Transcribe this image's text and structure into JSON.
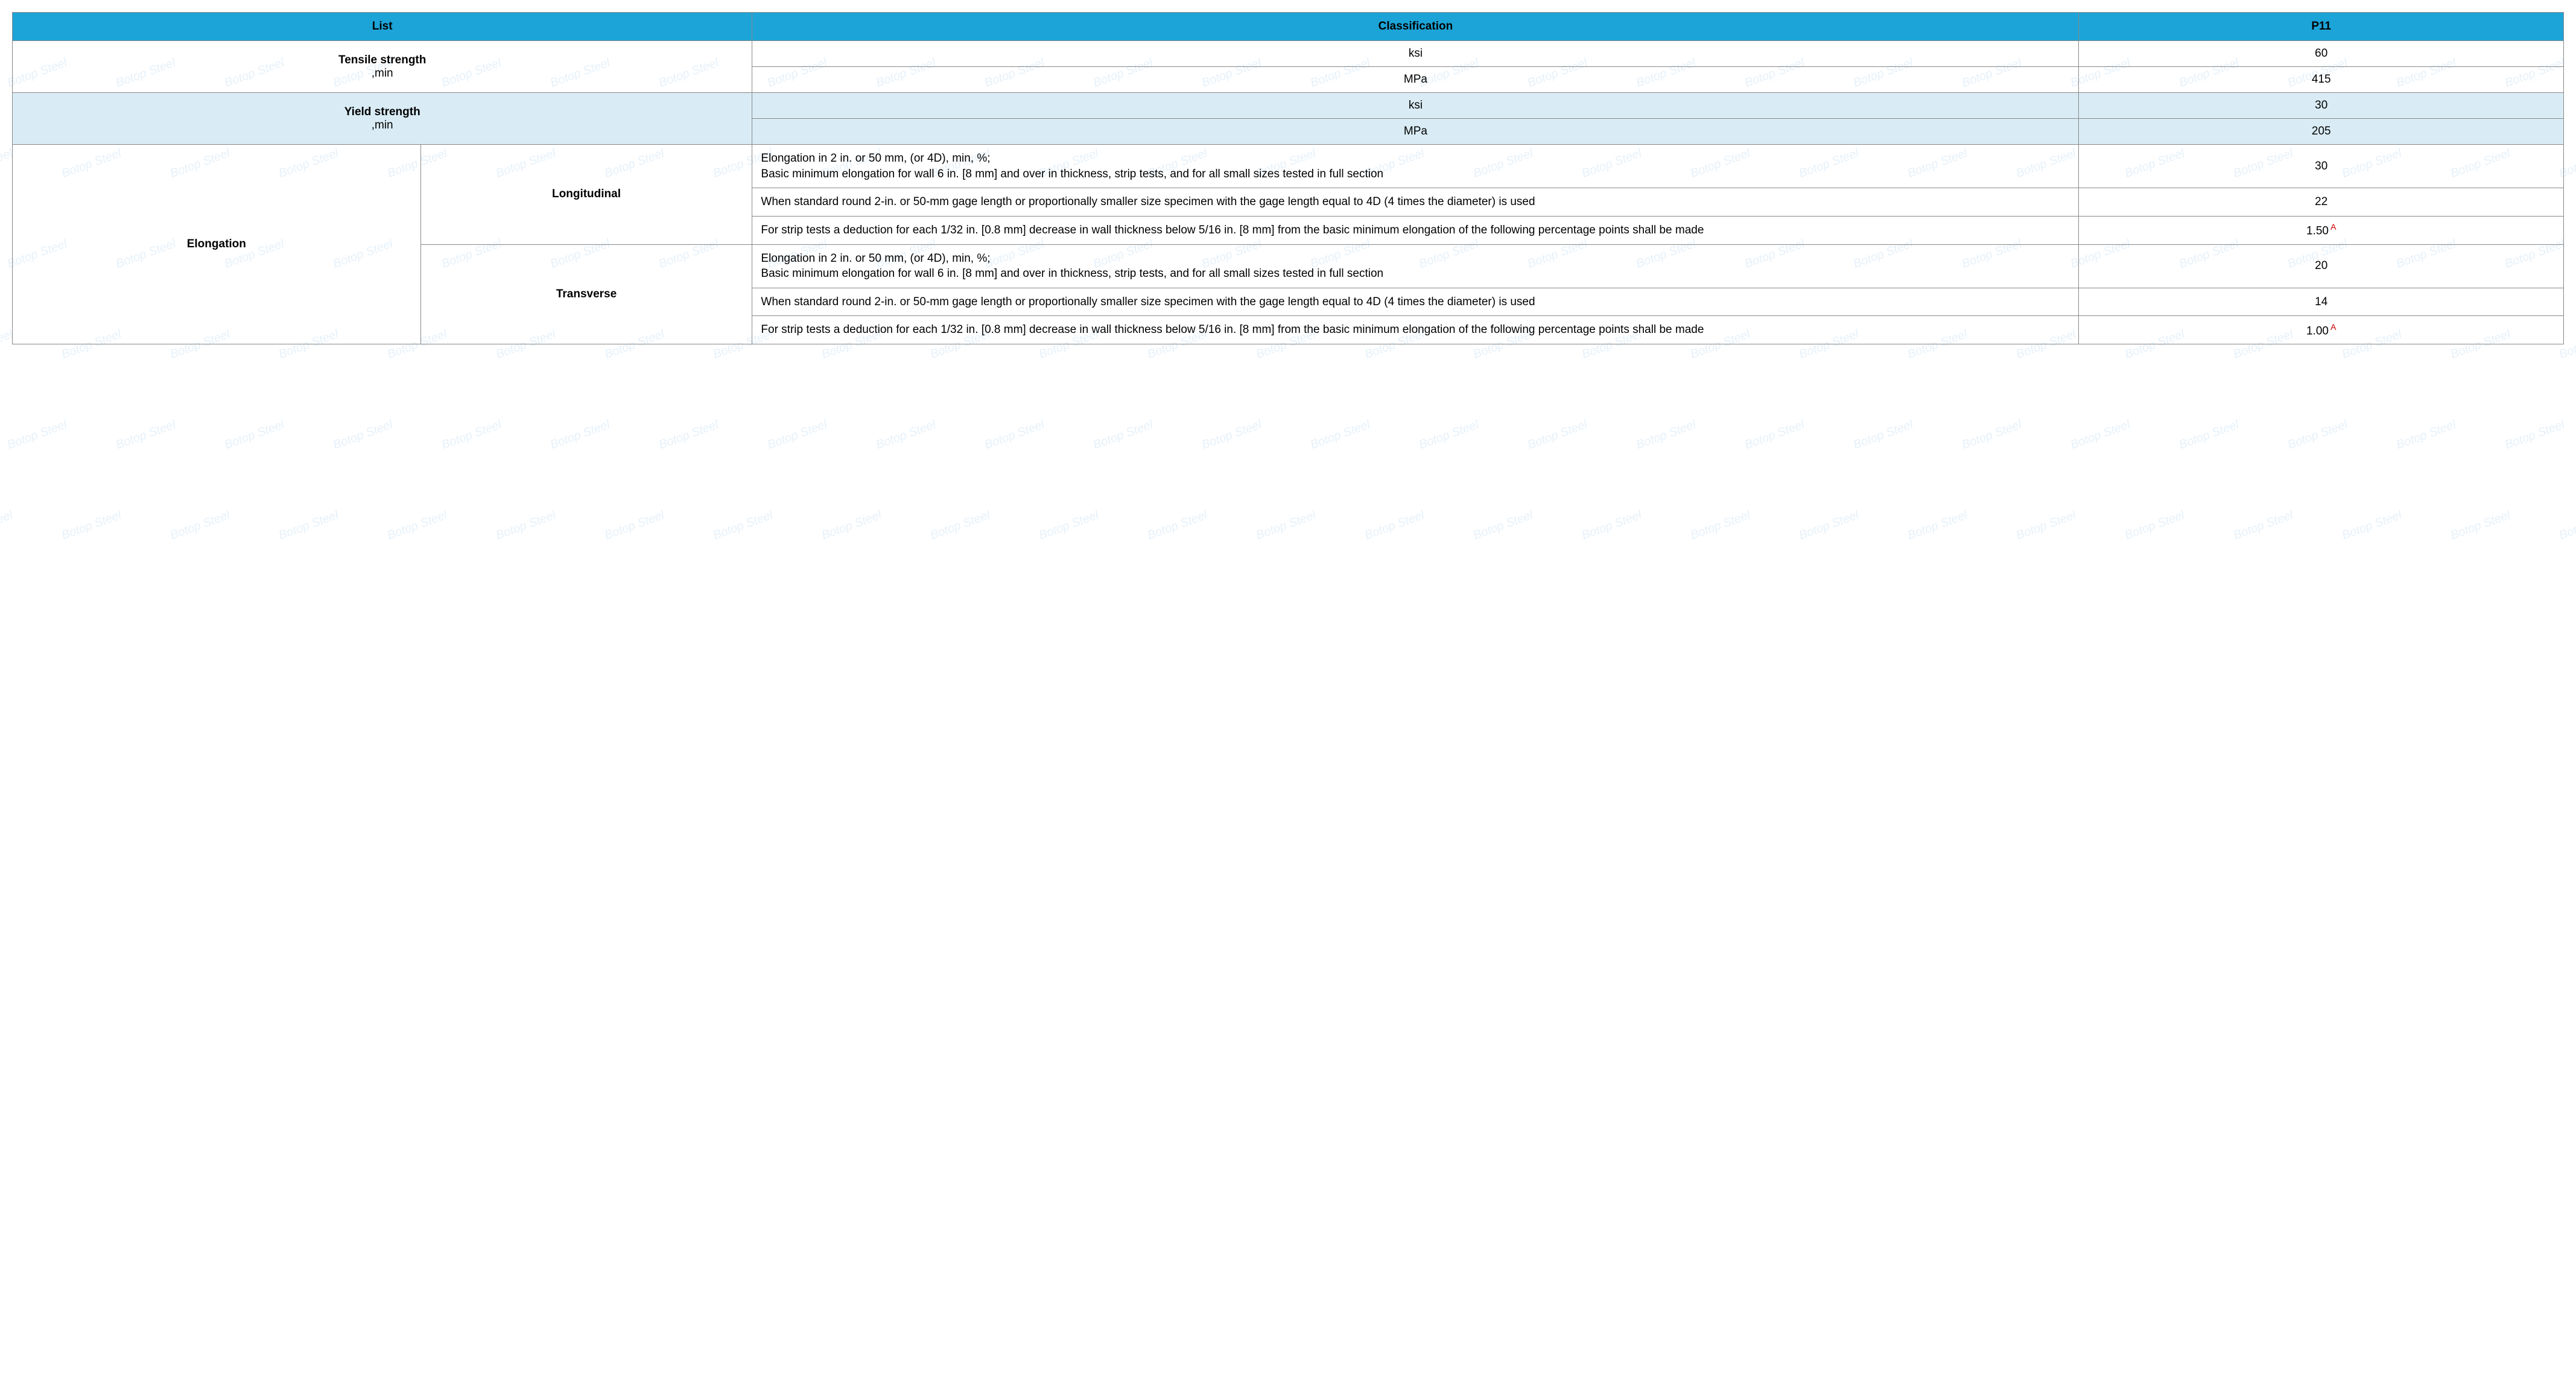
{
  "watermark_text": "Botop Steel",
  "header": {
    "list": "List",
    "classification": "Classification",
    "p11": "P11"
  },
  "tensile": {
    "label": "Tensile strength",
    "sublabel": ",min",
    "rows": [
      {
        "unit": "ksi",
        "value": "60"
      },
      {
        "unit": "MPa",
        "value": "415"
      }
    ]
  },
  "yield": {
    "label": "Yield strength",
    "sublabel": ",min",
    "rows": [
      {
        "unit": "ksi",
        "value": "30"
      },
      {
        "unit": "MPa",
        "value": "205"
      }
    ]
  },
  "elong": {
    "label": "Elongation",
    "long": {
      "label": "Longitudinal",
      "r1": {
        "desc": "Elongation in 2 in. or 50 mm, (or 4D), min, %;\nBasic minimum elongation for wall 6 in. [8 mm] and over in thickness, strip tests, and for all small sizes tested in full section",
        "value": "30"
      },
      "r2": {
        "desc": "When standard round 2-in. or 50-mm gage length or proportionally smaller size specimen with the gage length equal to 4D (4 times the diameter) is used",
        "value": "22"
      },
      "r3": {
        "desc": "For strip tests a deduction for each 1/32 in. [0.8 mm] decrease in wall thickness below 5/16 in. [8 mm] from the basic minimum elongation of the following percentage points shall be made",
        "value": "1.50",
        "note": "A"
      }
    },
    "trans": {
      "label": "Transverse",
      "r1": {
        "desc": "Elongation in 2 in. or 50 mm, (or 4D), min, %;\nBasic minimum elongation for wall 6 in. [8 mm] and over in thickness, strip tests, and for all small sizes tested in full section",
        "value": "20"
      },
      "r2": {
        "desc": "When standard round 2-in. or 50-mm gage length or proportionally smaller size specimen with the gage length equal to 4D (4 times the diameter) is used",
        "value": "14"
      },
      "r3": {
        "desc": "For strip tests a deduction for each 1/32 in. [0.8 mm] decrease in wall thickness below 5/16 in. [8 mm] from the basic minimum elongation of the following percentage points shall be made",
        "value": "1.00",
        "note": "A"
      }
    }
  },
  "colors": {
    "header_bg": "#1ca4d8",
    "shade_bg": "#d9ecf5",
    "border": "#888888",
    "note": "#d00000",
    "watermark": "#b8d8f0"
  }
}
